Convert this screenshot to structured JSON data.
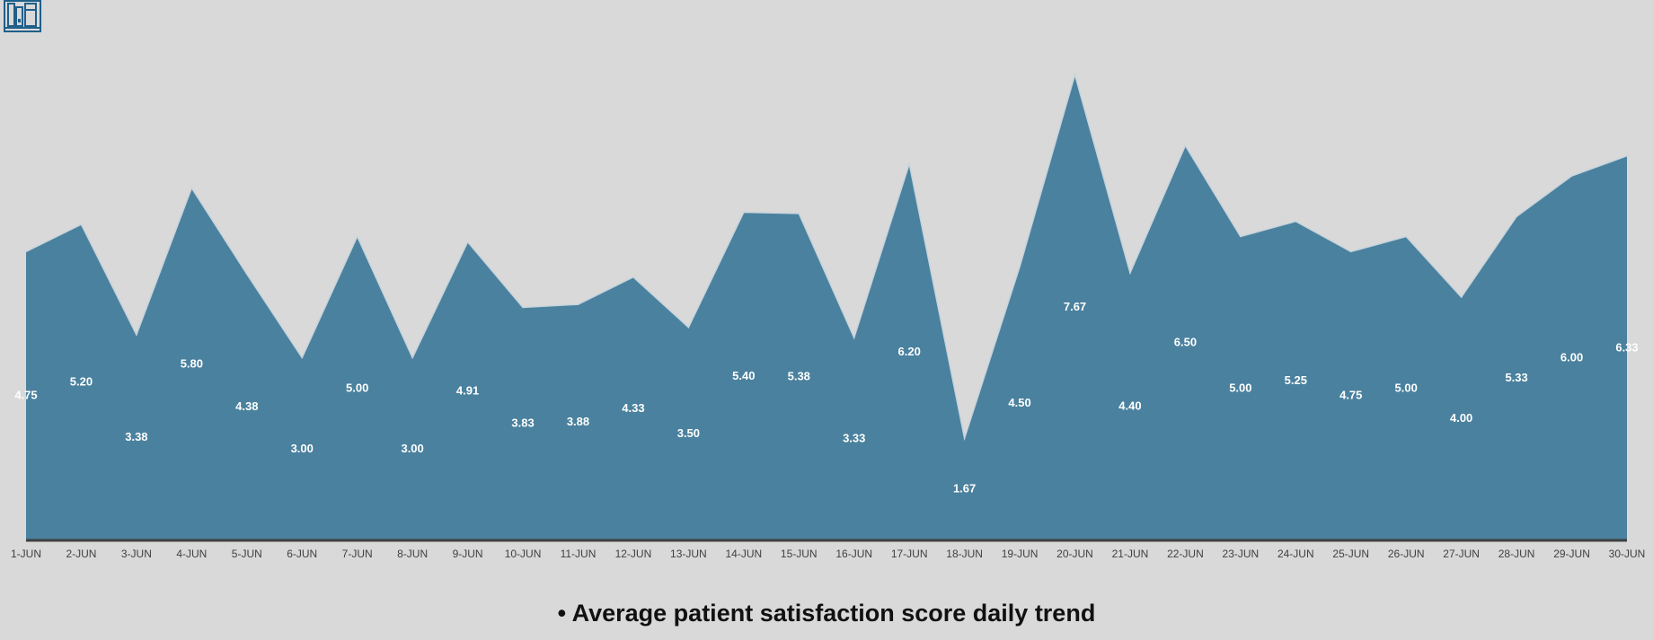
{
  "caption": "• Average patient satisfaction score daily trend",
  "logo_icon": "bookshelf-icon",
  "colors": {
    "background": "#d9d9d9",
    "area_fill": "#4a819e",
    "area_stroke": "#c6d3dc",
    "axis_line": "#404040",
    "label_text": "#ffffff",
    "tick_text": "#404040",
    "logo": "#1f5f8b"
  },
  "chart_data": {
    "type": "area",
    "categories": [
      "1-JUN",
      "2-JUN",
      "3-JUN",
      "4-JUN",
      "5-JUN",
      "6-JUN",
      "7-JUN",
      "8-JUN",
      "9-JUN",
      "10-JUN",
      "11-JUN",
      "12-JUN",
      "13-JUN",
      "14-JUN",
      "15-JUN",
      "16-JUN",
      "17-JUN",
      "18-JUN",
      "19-JUN",
      "20-JUN",
      "21-JUN",
      "22-JUN",
      "23-JUN",
      "24-JUN",
      "25-JUN",
      "26-JUN",
      "27-JUN",
      "28-JUN",
      "29-JUN",
      "30-JUN"
    ],
    "values": [
      4.75,
      5.2,
      3.38,
      5.8,
      4.38,
      3.0,
      5.0,
      3.0,
      4.91,
      3.83,
      3.88,
      4.33,
      3.5,
      5.4,
      5.38,
      3.33,
      6.2,
      1.67,
      4.5,
      7.67,
      4.4,
      6.5,
      5.0,
      5.25,
      4.75,
      5.0,
      4.0,
      5.33,
      6.0,
      6.33
    ],
    "value_labels": [
      "4.75",
      "5.20",
      "3.38",
      "5.80",
      "4.38",
      "3.00",
      "5.00",
      "3.00",
      "4.91",
      "3.83",
      "3.88",
      "4.33",
      "3.50",
      "5.40",
      "5.38",
      "3.33",
      "6.20",
      "1.67",
      "4.50",
      "7.67",
      "4.40",
      "6.50",
      "5.00",
      "5.25",
      "4.75",
      "5.00",
      "4.00",
      "5.33",
      "6.00",
      "6.33"
    ],
    "ylim": [
      0,
      8
    ],
    "grid": false,
    "legend": "none",
    "data_labels": true
  }
}
